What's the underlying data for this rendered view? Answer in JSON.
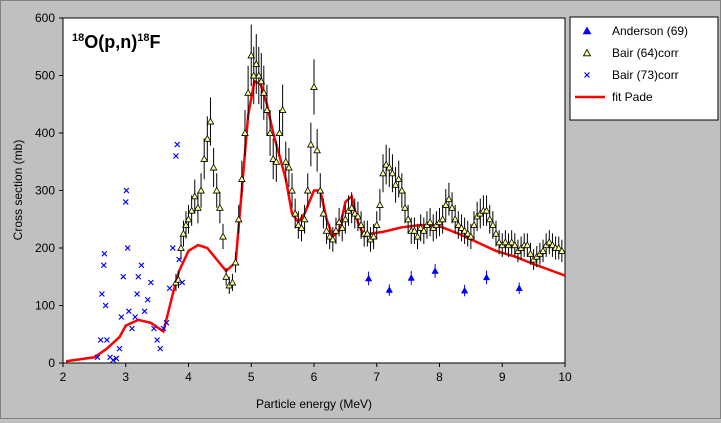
{
  "chart_data": {
    "type": "scatter",
    "title": "",
    "plot_label": {
      "pre_sup": "18",
      "main": "O(p,n)",
      "post_sup": "18",
      "post": "F"
    },
    "xlabel": "Particle energy (MeV)",
    "ylabel": "Cross section (mb)",
    "xlim": [
      2,
      10
    ],
    "ylim": [
      0,
      600
    ],
    "x_ticks": [
      "2",
      "3",
      "4",
      "5",
      "6",
      "7",
      "8",
      "9",
      "10"
    ],
    "y_ticks": [
      "0",
      "100",
      "200",
      "300",
      "400",
      "500",
      "600"
    ],
    "grid": false,
    "legend_position": "top-right outside plot",
    "colors": {
      "plot_bg": "#ffffff",
      "frame_bg": "#c0c0c0",
      "anderson": "#0000ff",
      "bair64_fill": "#ffff99",
      "bair64_edge": "#000000",
      "bair73": "#0000ff",
      "fit": "#ff0000",
      "errorbar": "#000000"
    },
    "series": [
      {
        "name": "Anderson (69)",
        "marker": "filled-triangle",
        "points": [
          [
            6.87,
            147
          ],
          [
            7.2,
            127
          ],
          [
            7.55,
            148
          ],
          [
            7.93,
            160
          ],
          [
            8.4,
            126
          ],
          [
            8.75,
            149
          ],
          [
            9.27,
            130
          ]
        ],
        "err": [
          12,
          10,
          12,
          12,
          10,
          12,
          10
        ]
      },
      {
        "name": "Bair (64)corr",
        "marker": "open-triangle",
        "points": [
          [
            3.8,
            140
          ],
          [
            3.84,
            145
          ],
          [
            3.88,
            200
          ],
          [
            3.92,
            225
          ],
          [
            3.96,
            240
          ],
          [
            4.0,
            250
          ],
          [
            4.05,
            265
          ],
          [
            4.1,
            290
          ],
          [
            4.15,
            270
          ],
          [
            4.2,
            300
          ],
          [
            4.25,
            355
          ],
          [
            4.3,
            390
          ],
          [
            4.35,
            420
          ],
          [
            4.4,
            340
          ],
          [
            4.45,
            300
          ],
          [
            4.5,
            270
          ],
          [
            4.55,
            220
          ],
          [
            4.6,
            150
          ],
          [
            4.65,
            135
          ],
          [
            4.7,
            140
          ],
          [
            4.75,
            175
          ],
          [
            4.8,
            250
          ],
          [
            4.85,
            320
          ],
          [
            4.9,
            400
          ],
          [
            4.95,
            470
          ],
          [
            5.0,
            535
          ],
          [
            5.04,
            500
          ],
          [
            5.08,
            520
          ],
          [
            5.12,
            500
          ],
          [
            5.16,
            490
          ],
          [
            5.2,
            470
          ],
          [
            5.25,
            440
          ],
          [
            5.3,
            400
          ],
          [
            5.35,
            355
          ],
          [
            5.4,
            350
          ],
          [
            5.45,
            400
          ],
          [
            5.5,
            440
          ],
          [
            5.55,
            350
          ],
          [
            5.6,
            340
          ],
          [
            5.65,
            300
          ],
          [
            5.7,
            260
          ],
          [
            5.75,
            240
          ],
          [
            5.8,
            235
          ],
          [
            5.85,
            250
          ],
          [
            5.9,
            300
          ],
          [
            5.95,
            380
          ],
          [
            6.0,
            480
          ],
          [
            6.05,
            370
          ],
          [
            6.1,
            300
          ],
          [
            6.15,
            260
          ],
          [
            6.2,
            230
          ],
          [
            6.25,
            220
          ],
          [
            6.3,
            215
          ],
          [
            6.35,
            230
          ],
          [
            6.4,
            245
          ],
          [
            6.45,
            235
          ],
          [
            6.5,
            250
          ],
          [
            6.55,
            265
          ],
          [
            6.6,
            270
          ],
          [
            6.65,
            260
          ],
          [
            6.7,
            255
          ],
          [
            6.75,
            240
          ],
          [
            6.8,
            225
          ],
          [
            6.85,
            225
          ],
          [
            6.9,
            215
          ],
          [
            6.95,
            220
          ],
          [
            7.0,
            240
          ],
          [
            7.05,
            275
          ],
          [
            7.1,
            330
          ],
          [
            7.15,
            345
          ],
          [
            7.2,
            340
          ],
          [
            7.25,
            330
          ],
          [
            7.3,
            310
          ],
          [
            7.35,
            320
          ],
          [
            7.4,
            300
          ],
          [
            7.45,
            270
          ],
          [
            7.5,
            250
          ],
          [
            7.55,
            230
          ],
          [
            7.6,
            230
          ],
          [
            7.65,
            220
          ],
          [
            7.7,
            235
          ],
          [
            7.75,
            230
          ],
          [
            7.8,
            240
          ],
          [
            7.85,
            245
          ],
          [
            7.9,
            235
          ],
          [
            7.95,
            240
          ],
          [
            8.0,
            245
          ],
          [
            8.05,
            250
          ],
          [
            8.1,
            275
          ],
          [
            8.15,
            285
          ],
          [
            8.2,
            270
          ],
          [
            8.25,
            250
          ],
          [
            8.3,
            240
          ],
          [
            8.35,
            235
          ],
          [
            8.4,
            230
          ],
          [
            8.45,
            225
          ],
          [
            8.5,
            220
          ],
          [
            8.55,
            240
          ],
          [
            8.6,
            255
          ],
          [
            8.65,
            260
          ],
          [
            8.7,
            265
          ],
          [
            8.75,
            265
          ],
          [
            8.8,
            250
          ],
          [
            8.85,
            240
          ],
          [
            8.9,
            225
          ],
          [
            8.95,
            210
          ],
          [
            9.0,
            205
          ],
          [
            9.05,
            210
          ],
          [
            9.1,
            205
          ],
          [
            9.15,
            210
          ],
          [
            9.2,
            205
          ],
          [
            9.25,
            195
          ],
          [
            9.3,
            200
          ],
          [
            9.35,
            205
          ],
          [
            9.4,
            205
          ],
          [
            9.45,
            190
          ],
          [
            9.5,
            180
          ],
          [
            9.55,
            185
          ],
          [
            9.6,
            190
          ],
          [
            9.65,
            195
          ],
          [
            9.7,
            205
          ],
          [
            9.75,
            210
          ],
          [
            9.8,
            205
          ],
          [
            9.85,
            200
          ],
          [
            9.9,
            200
          ],
          [
            9.95,
            195
          ]
        ]
      },
      {
        "name": "Bair (73)corr",
        "marker": "x-cross",
        "points": [
          [
            2.55,
            10
          ],
          [
            2.6,
            40
          ],
          [
            2.62,
            120
          ],
          [
            2.65,
            170
          ],
          [
            2.66,
            190
          ],
          [
            2.68,
            100
          ],
          [
            2.7,
            40
          ],
          [
            2.75,
            10
          ],
          [
            2.8,
            5
          ],
          [
            2.85,
            8
          ],
          [
            2.9,
            25
          ],
          [
            2.93,
            80
          ],
          [
            2.96,
            150
          ],
          [
            3.0,
            280
          ],
          [
            3.01,
            300
          ],
          [
            3.03,
            200
          ],
          [
            3.05,
            90
          ],
          [
            3.1,
            60
          ],
          [
            3.15,
            80
          ],
          [
            3.18,
            120
          ],
          [
            3.2,
            150
          ],
          [
            3.25,
            170
          ],
          [
            3.3,
            90
          ],
          [
            3.35,
            110
          ],
          [
            3.4,
            140
          ],
          [
            3.45,
            60
          ],
          [
            3.5,
            40
          ],
          [
            3.55,
            25
          ],
          [
            3.6,
            60
          ],
          [
            3.65,
            70
          ],
          [
            3.7,
            130
          ],
          [
            3.75,
            200
          ],
          [
            3.8,
            360
          ],
          [
            3.82,
            380
          ],
          [
            3.85,
            180
          ],
          [
            3.9,
            140
          ]
        ]
      },
      {
        "name": "fit Pade",
        "marker": "line",
        "points": [
          [
            2.05,
            3
          ],
          [
            2.5,
            10
          ],
          [
            2.7,
            25
          ],
          [
            2.9,
            45
          ],
          [
            3.0,
            65
          ],
          [
            3.2,
            75
          ],
          [
            3.4,
            70
          ],
          [
            3.6,
            55
          ],
          [
            3.75,
            120
          ],
          [
            3.85,
            160
          ],
          [
            4.0,
            195
          ],
          [
            4.15,
            205
          ],
          [
            4.3,
            200
          ],
          [
            4.45,
            180
          ],
          [
            4.6,
            160
          ],
          [
            4.75,
            175
          ],
          [
            4.85,
            300
          ],
          [
            4.95,
            430
          ],
          [
            5.05,
            490
          ],
          [
            5.15,
            485
          ],
          [
            5.25,
            450
          ],
          [
            5.35,
            400
          ],
          [
            5.45,
            360
          ],
          [
            5.55,
            320
          ],
          [
            5.65,
            260
          ],
          [
            5.75,
            245
          ],
          [
            5.85,
            260
          ],
          [
            6.0,
            300
          ],
          [
            6.1,
            300
          ],
          [
            6.2,
            250
          ],
          [
            6.3,
            220
          ],
          [
            6.4,
            230
          ],
          [
            6.5,
            280
          ],
          [
            6.6,
            290
          ],
          [
            6.7,
            245
          ],
          [
            6.8,
            220
          ],
          [
            6.9,
            225
          ],
          [
            7.1,
            228
          ],
          [
            7.4,
            236
          ],
          [
            7.7,
            240
          ],
          [
            8.0,
            238
          ],
          [
            8.3,
            225
          ],
          [
            8.6,
            210
          ],
          [
            8.9,
            195
          ],
          [
            9.2,
            185
          ],
          [
            9.5,
            172
          ],
          [
            9.8,
            160
          ],
          [
            10.0,
            152
          ]
        ]
      }
    ]
  }
}
